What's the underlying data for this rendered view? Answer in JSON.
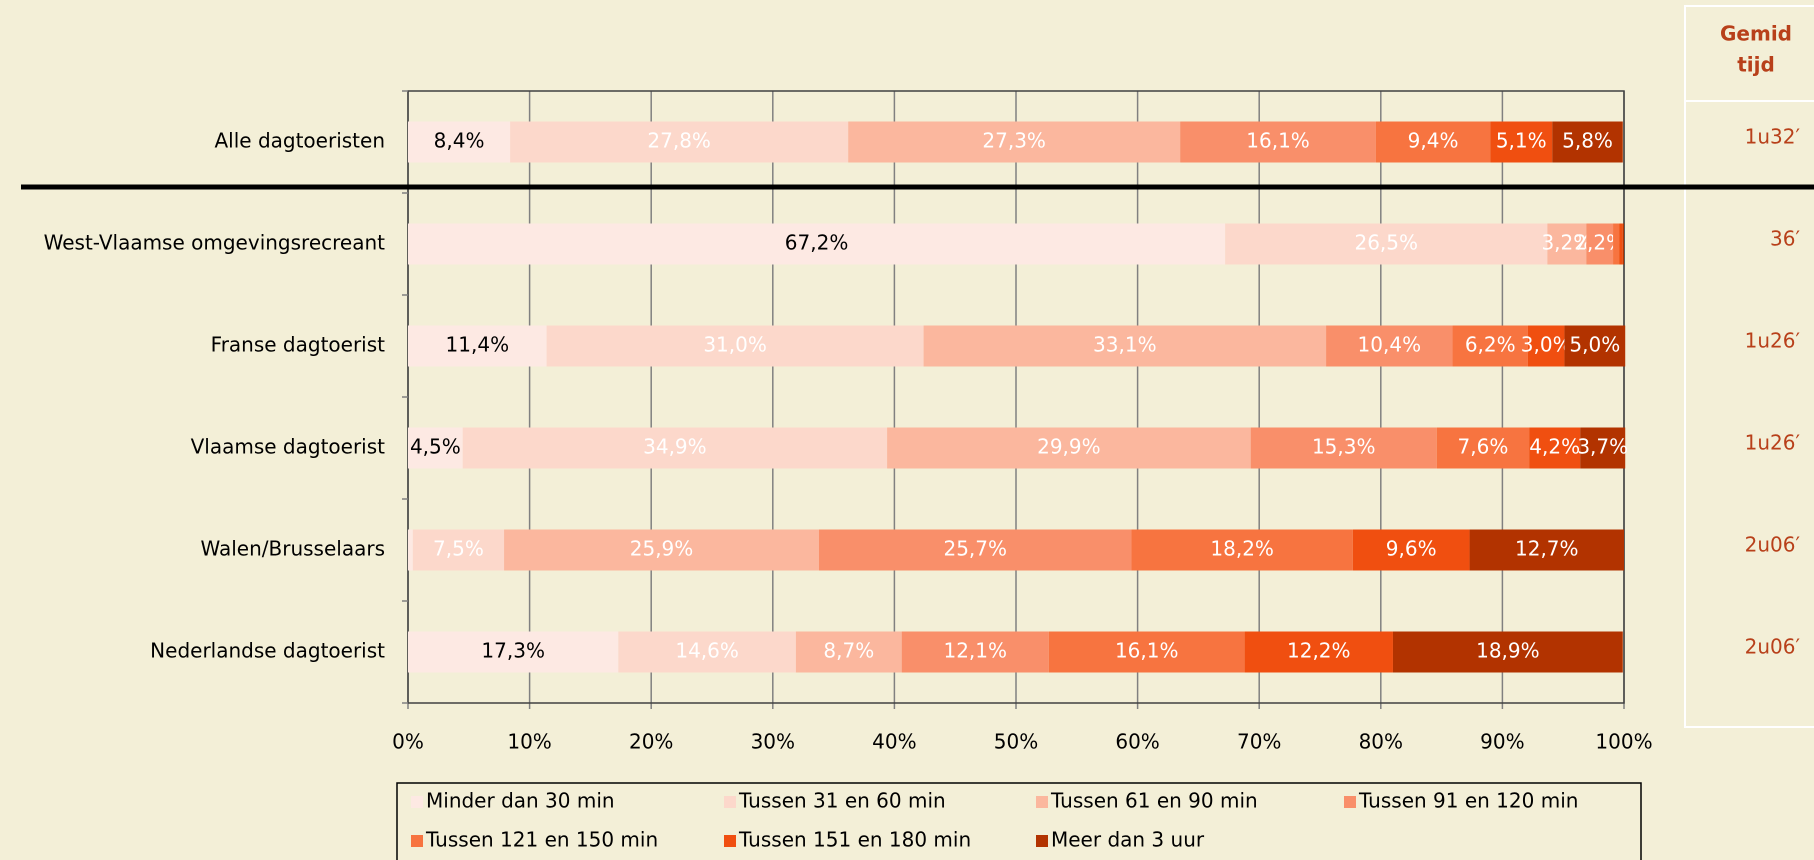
{
  "chart_data": {
    "type": "stacked_barh",
    "categories": [
      "Alle dagtoeristen",
      "West-Vlaamse omgevingsrecreant",
      "Franse dagtoerist",
      "Vlaamse dagtoerist",
      "Walen/Brusselaars",
      "Nederlandse dagtoerist"
    ],
    "series": [
      {
        "name": "Minder dan 30 min",
        "color": "#fde9e3",
        "label_color": "#000000",
        "values": [
          8.4,
          67.2,
          11.4,
          4.5,
          0.4,
          17.3
        ],
        "value_labels": [
          "8,4%",
          "67,2%",
          "11,4%",
          "4,5%",
          null,
          "17,3%"
        ]
      },
      {
        "name": "Tussen 31 en 60 min",
        "color": "#fcd8cb",
        "label_color": "#ffffff",
        "values": [
          27.8,
          26.5,
          31.0,
          34.9,
          7.5,
          14.6
        ],
        "value_labels": [
          "27,8%",
          "26,5%",
          "31,0%",
          "34,9%",
          "7,5%",
          "14,6%"
        ]
      },
      {
        "name": "Tussen 61 en 90 min",
        "color": "#fbb79e",
        "label_color": "#ffffff",
        "values": [
          27.3,
          3.2,
          33.1,
          29.9,
          25.9,
          8.7
        ],
        "value_labels": [
          "27,3%",
          "3,2%",
          "33,1%",
          "29,9%",
          "25,9%",
          "8,7%"
        ]
      },
      {
        "name": "Tussen 91 en 120 min",
        "color": "#f98f6a",
        "label_color": "#ffffff",
        "values": [
          16.1,
          2.2,
          10.4,
          15.3,
          25.7,
          12.1
        ],
        "value_labels": [
          "16,1%",
          "2,2%",
          "10,4%",
          "15,3%",
          "25,7%",
          "12,1%"
        ]
      },
      {
        "name": "Tussen 121 en 150 min",
        "color": "#f77440",
        "label_color": "#ffffff",
        "values": [
          9.4,
          0.5,
          6.2,
          7.6,
          18.2,
          16.1
        ],
        "value_labels": [
          "9,4%",
          null,
          "6,2%",
          "7,6%",
          "18,2%",
          "16,1%"
        ]
      },
      {
        "name": "Tussen 151 en 180 min",
        "color": "#f04f10",
        "label_color": "#ffffff",
        "values": [
          5.1,
          0.3,
          3.0,
          4.2,
          9.6,
          12.2
        ],
        "value_labels": [
          "5,1%",
          null,
          "3,0%",
          "4,2%",
          "9,6%",
          "12,2%"
        ]
      },
      {
        "name": "Meer dan 3 uur",
        "color": "#b23300",
        "label_color": "#ffffff",
        "values": [
          5.8,
          0.1,
          5.0,
          3.7,
          12.7,
          18.9
        ],
        "value_labels": [
          "5,8%",
          null,
          "5,0%",
          "3,7%",
          "12,7%",
          "18,9%"
        ]
      }
    ],
    "xlim": [
      0,
      100
    ],
    "xticks": [
      {
        "value": 0,
        "label": "0%"
      },
      {
        "value": 10,
        "label": "10%"
      },
      {
        "value": 20,
        "label": "20%"
      },
      {
        "value": 30,
        "label": "30%"
      },
      {
        "value": 40,
        "label": "40%"
      },
      {
        "value": 50,
        "label": "50%"
      },
      {
        "value": 60,
        "label": "60%"
      },
      {
        "value": 70,
        "label": "70%"
      },
      {
        "value": 80,
        "label": "80%"
      },
      {
        "value": 90,
        "label": "90%"
      },
      {
        "value": 100,
        "label": "100%"
      }
    ],
    "grid": true,
    "legend": "bottom",
    "side_panel": {
      "header": [
        "Gemid",
        "tijd"
      ],
      "values": [
        "1u32′",
        "36′",
        "1u26′",
        "1u26′",
        "2u06′",
        "2u06′"
      ],
      "color": "#b8401a"
    }
  }
}
